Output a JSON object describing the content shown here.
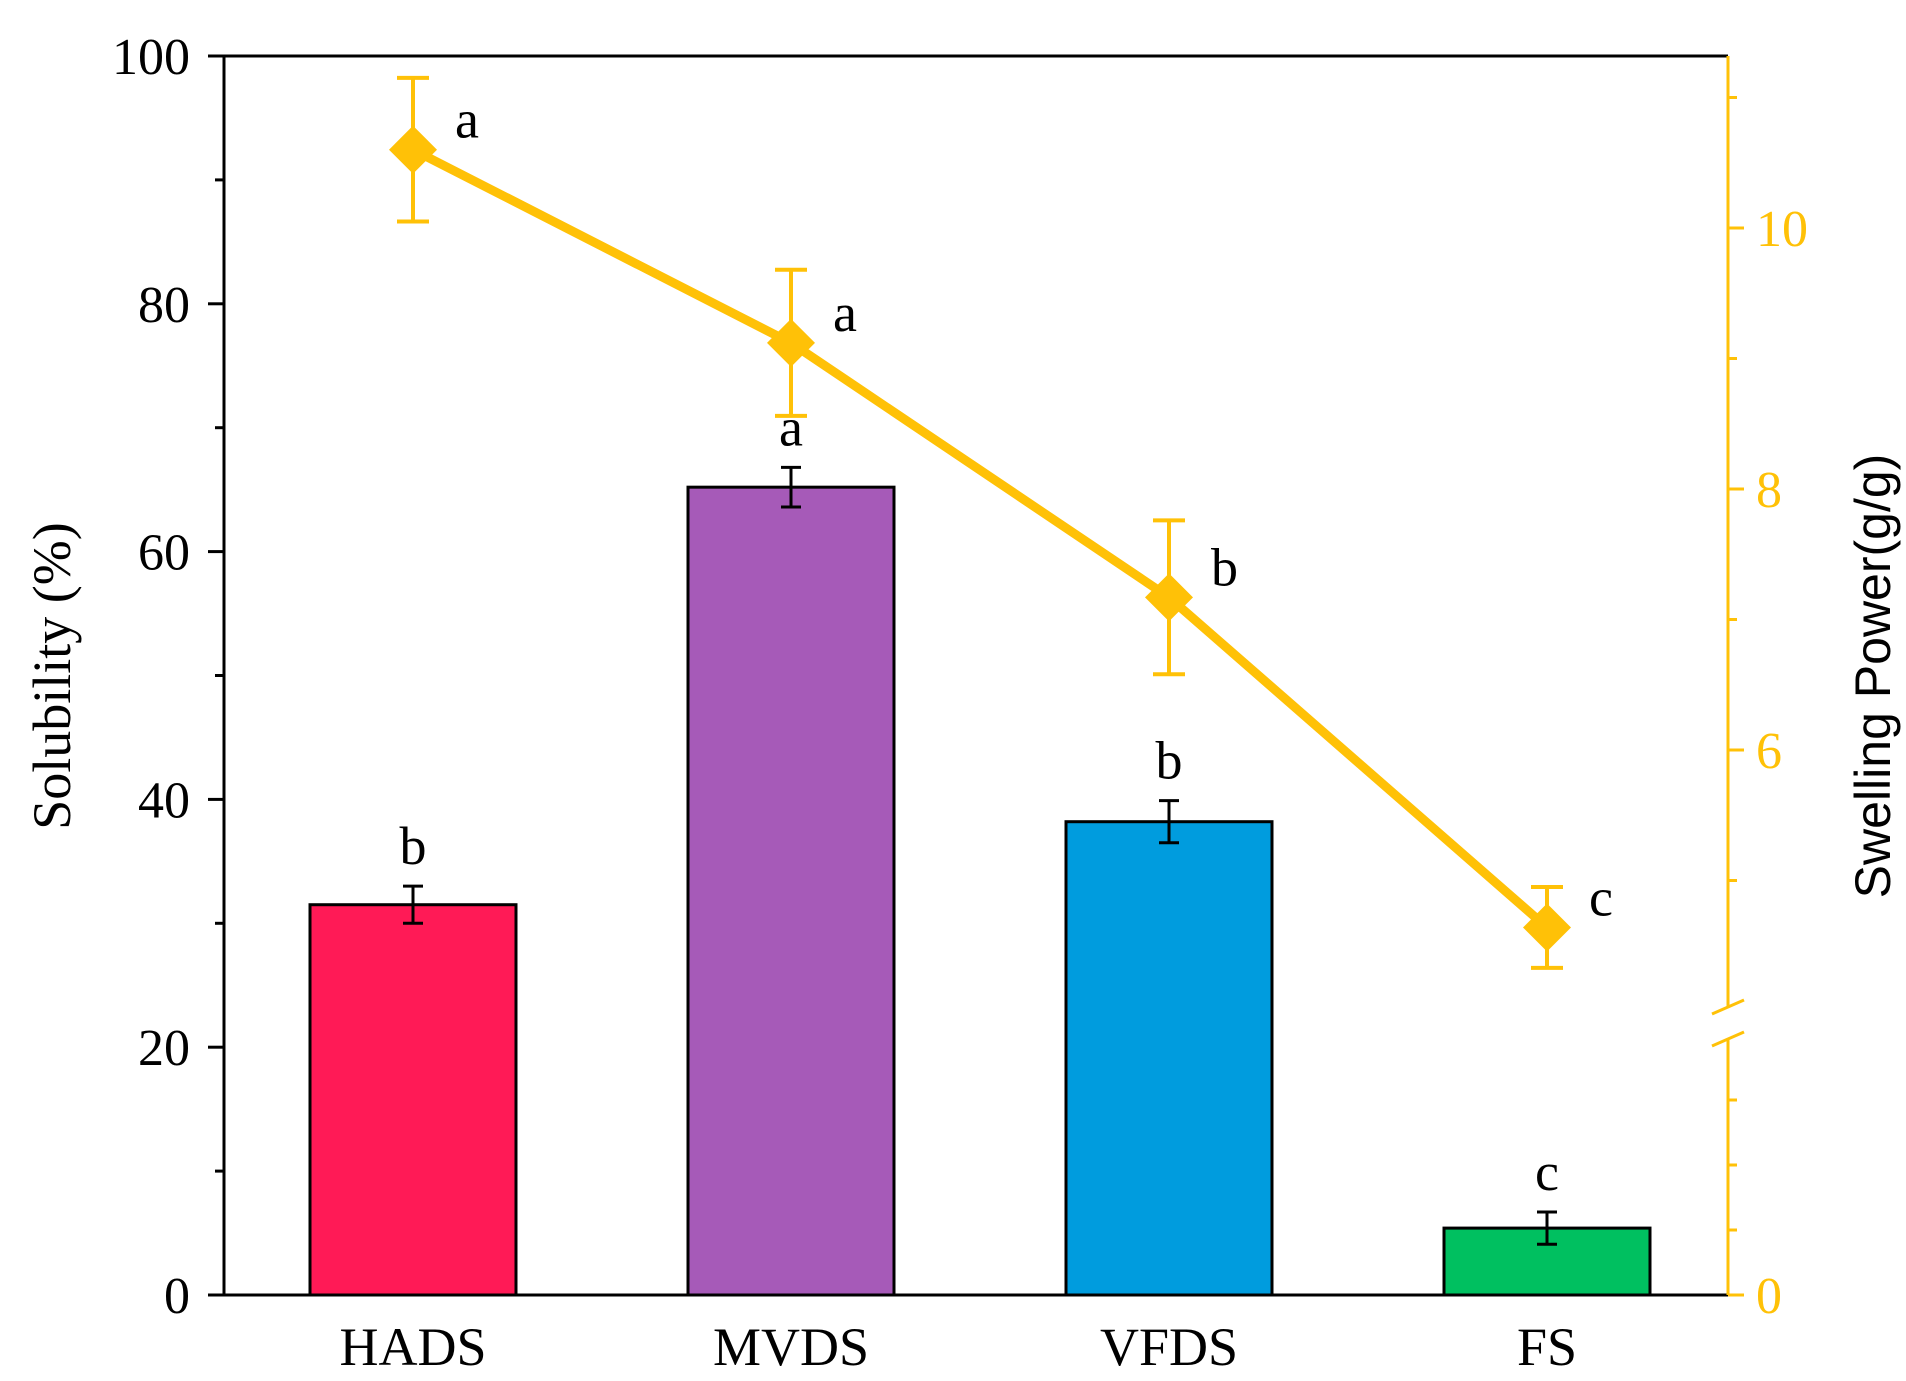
{
  "chart_data": {
    "type": "bar+line",
    "categories": [
      "HADS",
      "MVDS",
      "VFDS",
      "FS"
    ],
    "left_axis": {
      "label": "Solubility (%)",
      "ylim": [
        0,
        100
      ],
      "ticks": [
        "0",
        "20",
        "40",
        "60",
        "80",
        "100"
      ],
      "tick_values": [
        0,
        20,
        40,
        60,
        80,
        100
      ]
    },
    "right_axis": {
      "label": "Swelling Power(g/g)",
      "color": "#FFC107",
      "ticks": [
        "0",
        "6",
        "8",
        "10"
      ],
      "tick_values": [
        0,
        6,
        8,
        10
      ],
      "broken": true
    },
    "bars": {
      "name": "Solubility",
      "values": [
        31.5,
        65.2,
        38.2,
        5.4
      ],
      "errors": [
        1.5,
        1.6,
        1.7,
        1.3
      ],
      "colors": [
        "#FF1A56",
        "#A65AB8",
        "#009CDE",
        "#00C060"
      ],
      "labels": [
        "b",
        "a",
        "b",
        "c"
      ]
    },
    "line": {
      "name": "Swelling Power",
      "values": [
        10.6,
        9.12,
        7.17,
        4.64
      ],
      "errors": [
        0.55,
        0.56,
        0.59,
        0.31
      ],
      "color": "#FFC107",
      "labels": [
        "a",
        "a",
        "b",
        "c"
      ]
    }
  }
}
